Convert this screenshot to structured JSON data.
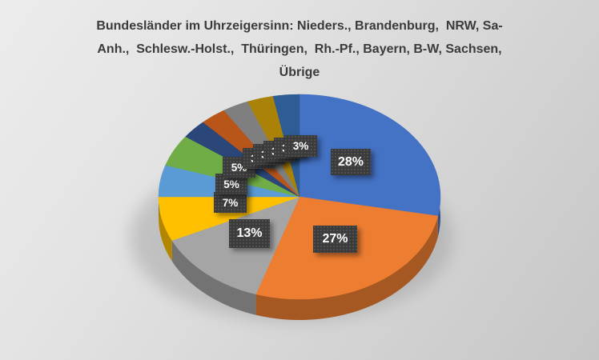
{
  "title": {
    "full": "Bundesländer im Uhrzeigersinn: Nieders., Brandenburg,  NRW, Sa-Anh.,  Schlesw.-Holst.,  Thüringen,  Rh.-Pf., Bayern, B-W, Sachsen, Übrige",
    "lines": [
      "Bundesländer im Uhrzeigersinn: Nieders., Brandenburg,  NRW, Sa-",
      "Anh.,  Schlesw.-Holst.,  Thüringen,  Rh.-Pf., Bayern, B-W, Sachsen,",
      "Übrige"
    ]
  },
  "chart_data": {
    "type": "pie",
    "style": "3d-pie",
    "title": "Bundesländer im Uhrzeigersinn: Nieders., Brandenburg, NRW, Sa-Anh., Schlesw.-Holst., Thüringen, Rh.-Pf., Bayern, B-W, Sachsen, Übrige",
    "direction": "clockwise",
    "start_angle_deg": 0,
    "unit": "%",
    "legend": "none",
    "categories": [
      "Nieders.",
      "Brandenburg",
      "NRW",
      "Sa-Anh.",
      "Schlesw.-Holst.",
      "Thüringen",
      "Rh.-Pf.",
      "Bayern",
      "B-W",
      "Sachsen",
      "Übrige"
    ],
    "values": [
      28,
      27,
      13,
      7,
      5,
      5,
      3,
      3,
      3,
      3,
      3
    ],
    "display_labels": [
      "28%",
      "27%",
      "13%",
      "7%",
      "5%",
      "5%",
      "3%",
      "3%",
      "3%",
      "3%",
      "3%"
    ],
    "colors": [
      "#4472C4",
      "#ED7D31",
      "#A5A5A5",
      "#FFC000",
      "#5B9BD5",
      "#70AD47",
      "#2B4779",
      "#B85519",
      "#7F7F7F",
      "#AA8208",
      "#2D5D94"
    ]
  },
  "style": {
    "title_color": "#3B3B3B",
    "label_box_color": "#3B3B3B",
    "label_text_color": "#FFFFFF",
    "slide_bg_light": "#ECECEC",
    "slide_bg_dark": "#C6C6C6"
  }
}
